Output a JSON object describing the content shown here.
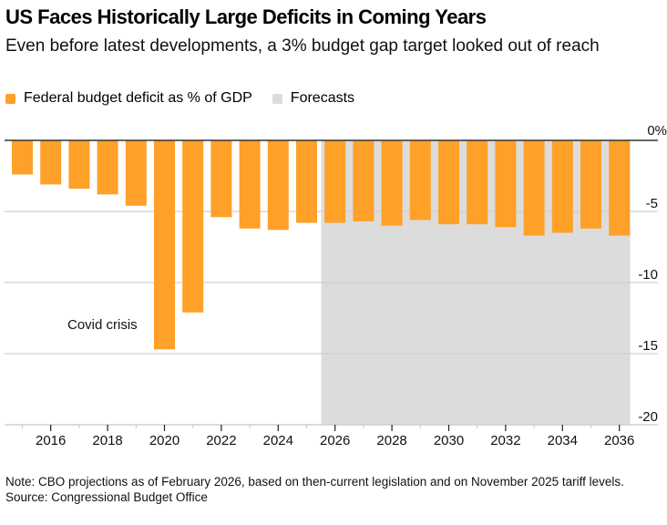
{
  "chart_data": {
    "type": "bar",
    "title": "US Faces Historically Large Deficits in Coming Years",
    "subtitle": "Even before latest developments, a 3% budget gap target looked out of reach",
    "legend": [
      {
        "label": "Federal budget deficit as % of GDP",
        "color": "#FFA028"
      },
      {
        "label": "Forecasts",
        "color": "#DCDCDC"
      }
    ],
    "categories": [
      2015,
      2016,
      2017,
      2018,
      2019,
      2020,
      2021,
      2022,
      2023,
      2024,
      2025,
      2026,
      2027,
      2028,
      2029,
      2030,
      2031,
      2032,
      2033,
      2034,
      2035,
      2036
    ],
    "values": [
      -2.4,
      -3.1,
      -3.4,
      -3.8,
      -4.6,
      -14.7,
      -12.1,
      -5.4,
      -6.2,
      -6.3,
      -5.8,
      -5.8,
      -5.7,
      -6.0,
      -5.6,
      -5.9,
      -5.9,
      -6.1,
      -6.7,
      -6.5,
      -6.2,
      -6.7
    ],
    "forecast_range": [
      2026,
      2036
    ],
    "xlabel": "",
    "ylabel": "",
    "ylim": [
      -20,
      0
    ],
    "yticks": [
      0,
      -5,
      -10,
      -15,
      -20
    ],
    "ytick_labels": [
      "0%",
      "-5",
      "-10",
      "-15",
      "-20"
    ],
    "xticks": [
      2016,
      2018,
      2020,
      2022,
      2024,
      2026,
      2028,
      2030,
      2032,
      2034,
      2036
    ],
    "annotations": [
      {
        "text": "Covid crisis",
        "x": 2019,
        "y": -13
      }
    ],
    "grid": true,
    "legend_position": "top-left",
    "bar_color": "#FFA028",
    "forecast_color": "#DCDCDC"
  },
  "footer": {
    "note": "Note: CBO projections as of February 2026, based on then-current legislation and on November 2025 tariff levels.",
    "source": "Source: Congressional Budget Office"
  }
}
